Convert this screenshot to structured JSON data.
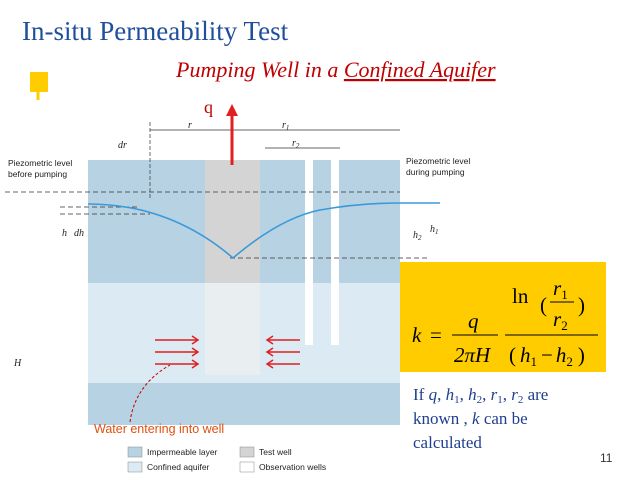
{
  "header": {
    "title": "In-situ Permeability Test",
    "subtitle_prefix": "Pumping Well in a ",
    "subtitle_underlined": "Confined Aquifer"
  },
  "diagram": {
    "flow_label": "q",
    "labels": [
      {
        "text": "r"
      },
      {
        "text": "r",
        "sub": "1"
      },
      {
        "text": "dr"
      },
      {
        "text": "r",
        "sub": "2"
      },
      {
        "text": "h"
      },
      {
        "text": "dh"
      },
      {
        "text": "h",
        "sub": "2"
      },
      {
        "text": "h",
        "sub": "1"
      },
      {
        "text": "H"
      }
    ],
    "piezometric_before": [
      "Piezometric level",
      "before pumping"
    ],
    "piezometric_during": [
      "Piezometric level",
      "during pumping"
    ],
    "callout": "Water entering into well",
    "legend": [
      "Impermeable layer",
      "Test well",
      "Confined aquifer",
      "Observation wells"
    ]
  },
  "formula": {
    "lhs": "k",
    "eq": "=",
    "numerator": "q",
    "denominator": "2πH",
    "ln": "ln",
    "r_num": "r",
    "r_num_sub": "1",
    "r_den": "r",
    "r_den_sub": "2",
    "open": "(",
    "h_a": "h",
    "h_a_sub": "1",
    "minus": "−",
    "h_b": "h",
    "h_b_sub": "2",
    "close": ")"
  },
  "note": [
    "If ",
    "q",
    ", ",
    "h",
    "1",
    ", ",
    "h",
    "2",
    ", ",
    "r",
    "1",
    ", ",
    "r",
    "2",
    " are",
    "known , ",
    "k",
    " can be",
    "calculated"
  ],
  "page_number": "11"
}
